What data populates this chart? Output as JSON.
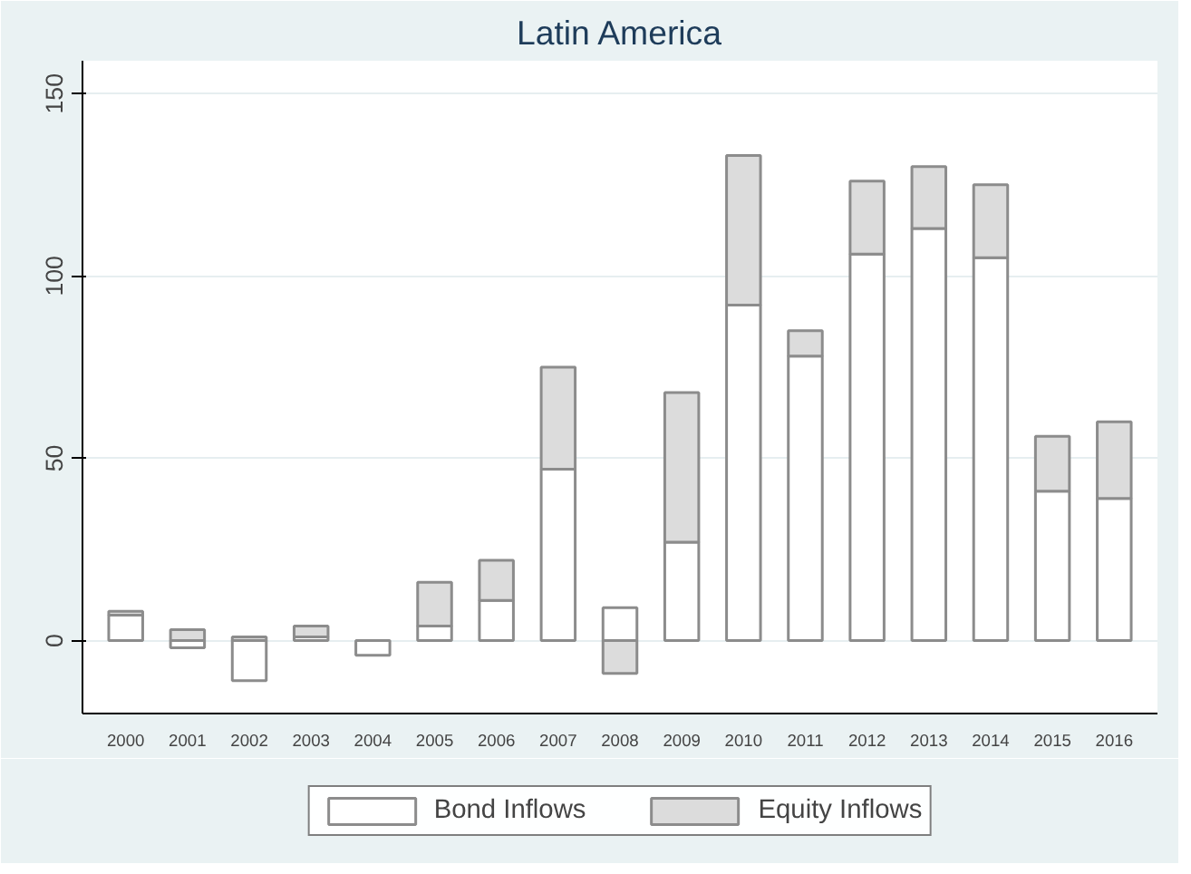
{
  "chart_data": {
    "type": "bar",
    "title": "Latin America",
    "stacked": true,
    "categories": [
      "2000",
      "2001",
      "2002",
      "2003",
      "2004",
      "2005",
      "2006",
      "2007",
      "2008",
      "2009",
      "2010",
      "2011",
      "2012",
      "2013",
      "2014",
      "2015",
      "2016"
    ],
    "series": [
      {
        "name": "Bond Inflows",
        "color": "#ffffff",
        "values": [
          7,
          -2,
          -11,
          1,
          -4,
          4,
          11,
          47,
          9,
          27,
          92,
          78,
          106,
          113,
          105,
          41,
          39
        ]
      },
      {
        "name": "Equity Inflows",
        "color": "#dcdcdc",
        "values": [
          1,
          3,
          1,
          3,
          0,
          12,
          11,
          28,
          -9,
          41,
          41,
          7,
          20,
          17,
          20,
          15,
          21
        ]
      }
    ],
    "ylim": [
      -20,
      159
    ],
    "yticks": [
      0,
      50,
      100,
      150
    ],
    "grid": "y",
    "legend": "bottom"
  }
}
